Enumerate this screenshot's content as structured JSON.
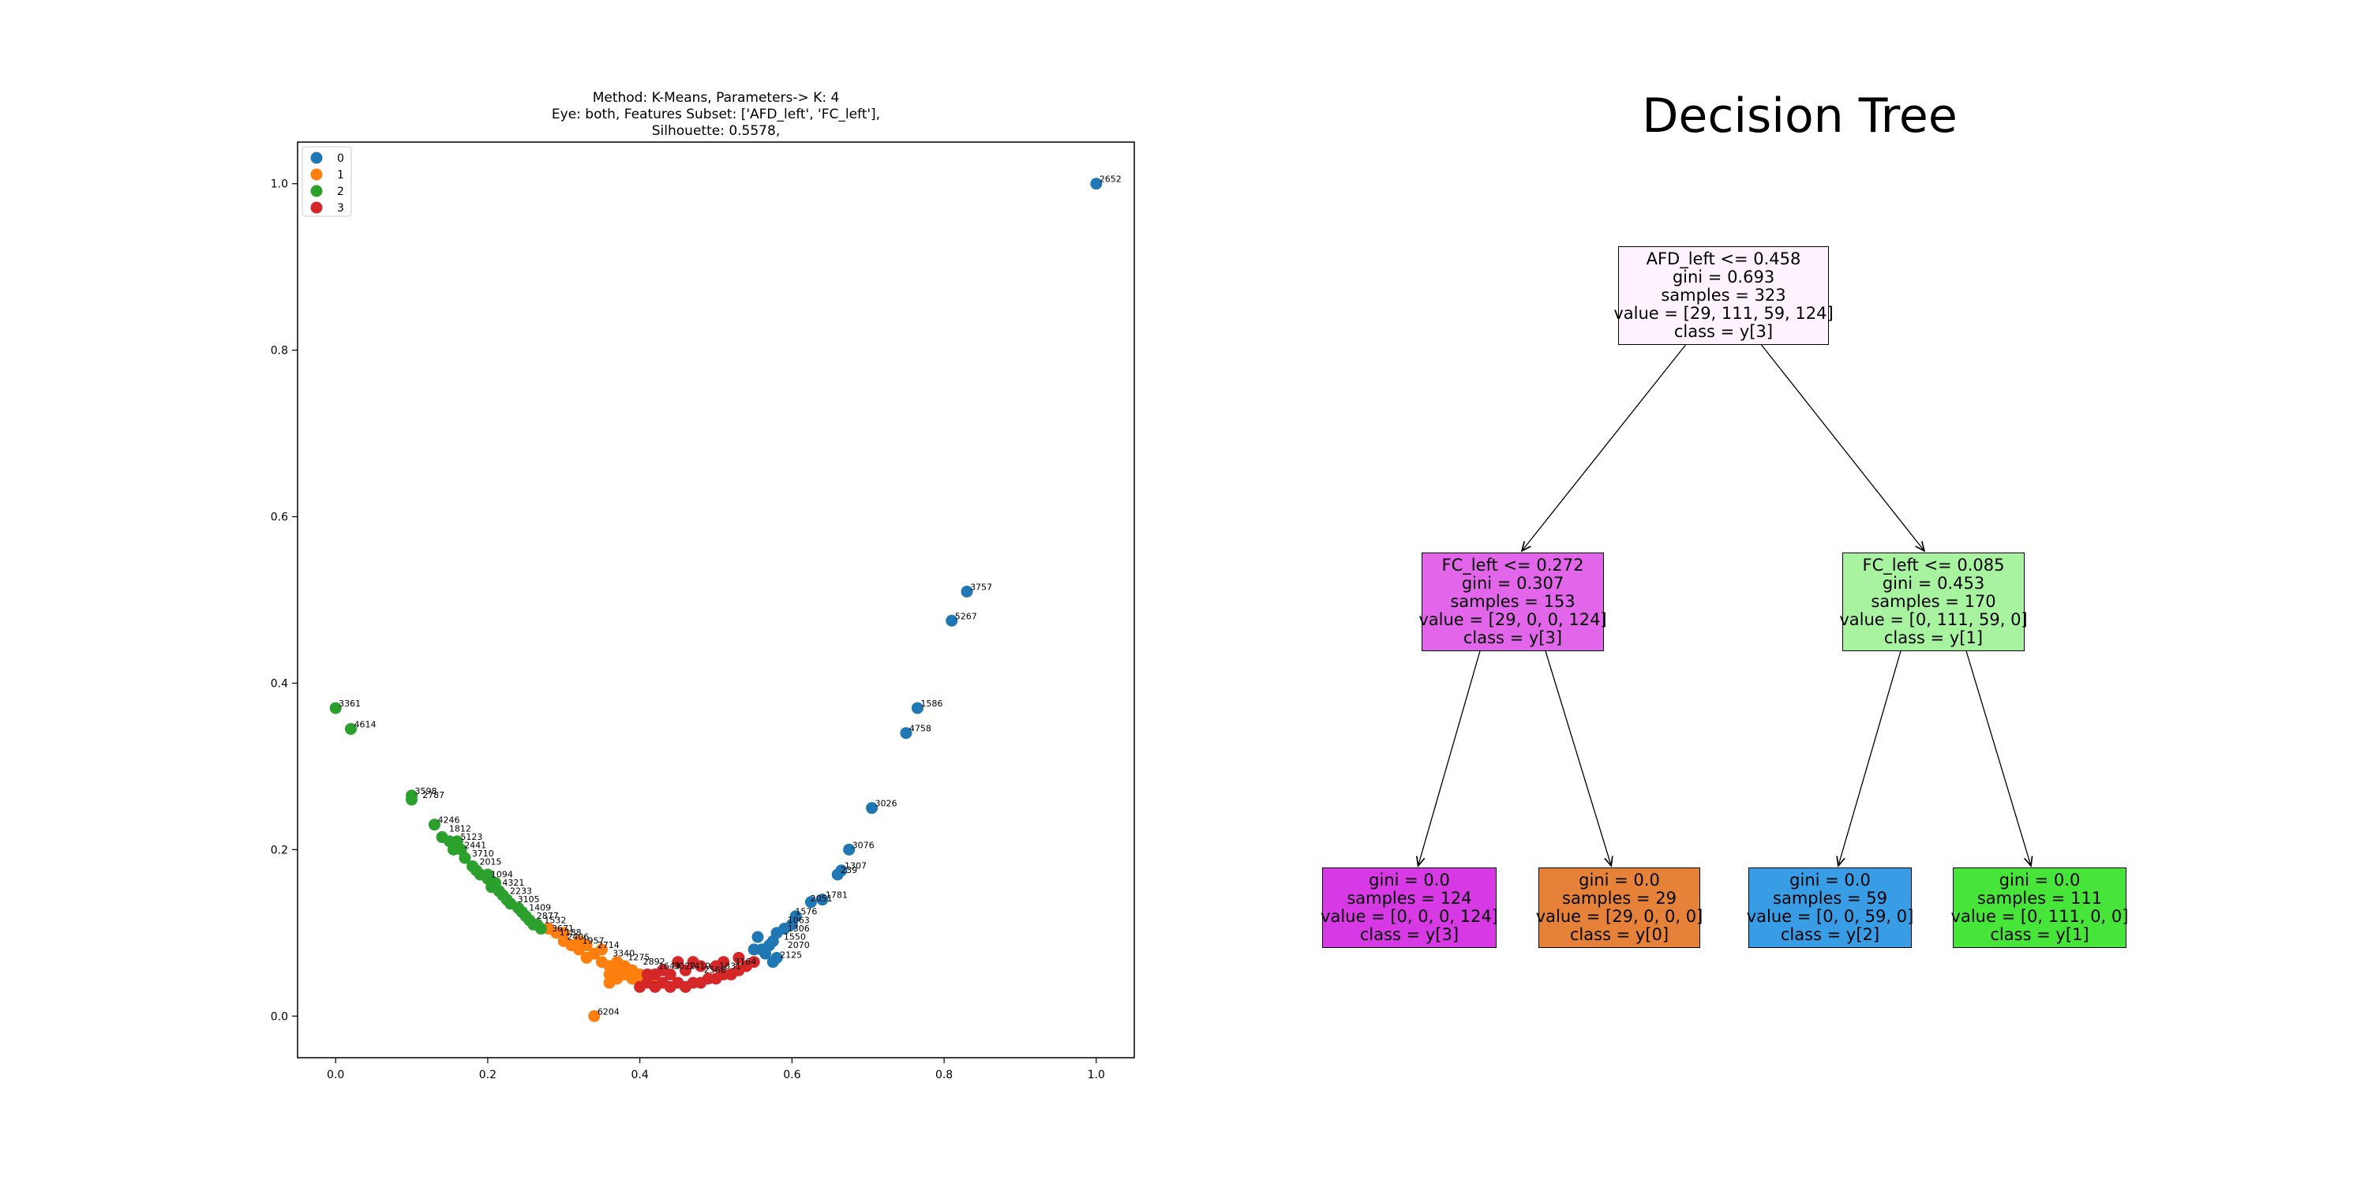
{
  "chart_data": [
    {
      "type": "scatter",
      "title": "Method: K-Means, Parameters-> K: 4\nEye: both, Features Subset: ['AFD_left', 'FC_left'],\nSilhouette: 0.5578,",
      "title_lines": [
        "Method: K-Means, Parameters-> K: 4",
        "Eye: both, Features Subset: ['AFD_left', 'FC_left'],",
        "Silhouette: 0.5578,"
      ],
      "xlabel": "",
      "ylabel": "",
      "xlim": [
        -0.05,
        1.05
      ],
      "ylim": [
        -0.05,
        1.05
      ],
      "x_ticks": [
        "0.0",
        "0.2",
        "0.4",
        "0.6",
        "0.8",
        "1.0"
      ],
      "y_ticks": [
        "0.0",
        "0.2",
        "0.4",
        "0.6",
        "0.8",
        "1.0"
      ],
      "grid": false,
      "legend_position": "top-left",
      "series": [
        {
          "name": "0",
          "color": "#1f77b4",
          "points": [
            [
              1.0,
              1.0
            ],
            [
              0.83,
              0.51
            ],
            [
              0.81,
              0.475
            ],
            [
              0.765,
              0.37
            ],
            [
              0.75,
              0.34
            ],
            [
              0.705,
              0.25
            ],
            [
              0.675,
              0.2
            ],
            [
              0.665,
              0.175
            ],
            [
              0.66,
              0.17
            ],
            [
              0.64,
              0.14
            ],
            [
              0.625,
              0.137
            ],
            [
              0.605,
              0.12
            ],
            [
              0.6,
              0.11
            ],
            [
              0.59,
              0.105
            ],
            [
              0.58,
              0.1
            ],
            [
              0.575,
              0.09
            ],
            [
              0.57,
              0.085
            ],
            [
              0.565,
              0.075
            ],
            [
              0.56,
              0.08
            ],
            [
              0.58,
              0.07
            ],
            [
              0.575,
              0.065
            ],
            [
              0.555,
              0.095
            ],
            [
              0.55,
              0.08
            ]
          ],
          "labels": [
            [
              1.0,
              1.0,
              "2652"
            ],
            [
              0.83,
              0.51,
              "3757"
            ],
            [
              0.81,
              0.475,
              "5267"
            ],
            [
              0.765,
              0.37,
              "1586"
            ],
            [
              0.75,
              0.34,
              "4758"
            ],
            [
              0.705,
              0.25,
              "3026"
            ],
            [
              0.675,
              0.2,
              "3076"
            ],
            [
              0.665,
              0.175,
              "1307"
            ],
            [
              0.66,
              0.17,
              "239"
            ],
            [
              0.64,
              0.14,
              "1781"
            ],
            [
              0.62,
              0.136,
              "2051"
            ],
            [
              0.6,
              0.12,
              "1576"
            ],
            [
              0.59,
              0.11,
              "1063"
            ],
            [
              0.59,
              0.1,
              "1306"
            ],
            [
              0.585,
              0.09,
              "1550"
            ],
            [
              0.59,
              0.08,
              "2070"
            ],
            [
              0.58,
              0.068,
              "2125"
            ]
          ]
        },
        {
          "name": "1",
          "color": "#ff7f0e",
          "points": [
            [
              0.34,
              0.0
            ],
            [
              0.36,
              0.06
            ],
            [
              0.37,
              0.055
            ],
            [
              0.38,
              0.05
            ],
            [
              0.37,
              0.045
            ],
            [
              0.36,
              0.04
            ],
            [
              0.39,
              0.045
            ],
            [
              0.35,
              0.065
            ],
            [
              0.33,
              0.07
            ],
            [
              0.32,
              0.08
            ],
            [
              0.31,
              0.085
            ],
            [
              0.3,
              0.09
            ],
            [
              0.3,
              0.1
            ],
            [
              0.29,
              0.1
            ],
            [
              0.28,
              0.105
            ],
            [
              0.34,
              0.075
            ],
            [
              0.38,
              0.06
            ],
            [
              0.4,
              0.05
            ],
            [
              0.41,
              0.045
            ],
            [
              0.42,
              0.04
            ],
            [
              0.36,
              0.05
            ],
            [
              0.35,
              0.08
            ],
            [
              0.33,
              0.085
            ],
            [
              0.32,
              0.09
            ],
            [
              0.39,
              0.055
            ],
            [
              0.37,
              0.065
            ],
            [
              0.4,
              0.04
            ]
          ],
          "labels": [
            [
              0.34,
              0.0,
              "6204"
            ]
          ]
        },
        {
          "name": "2",
          "color": "#2ca02c",
          "points": [
            [
              0.0,
              0.37
            ],
            [
              0.02,
              0.345
            ],
            [
              0.1,
              0.265
            ],
            [
              0.1,
              0.26
            ],
            [
              0.13,
              0.23
            ],
            [
              0.14,
              0.215
            ],
            [
              0.15,
              0.21
            ],
            [
              0.155,
              0.2
            ],
            [
              0.165,
              0.2
            ],
            [
              0.17,
              0.19
            ],
            [
              0.18,
              0.18
            ],
            [
              0.185,
              0.175
            ],
            [
              0.19,
              0.17
            ],
            [
              0.2,
              0.165
            ],
            [
              0.205,
              0.155
            ],
            [
              0.21,
              0.155
            ],
            [
              0.215,
              0.15
            ],
            [
              0.22,
              0.145
            ],
            [
              0.225,
              0.14
            ],
            [
              0.23,
              0.135
            ],
            [
              0.24,
              0.13
            ],
            [
              0.245,
              0.125
            ],
            [
              0.25,
              0.12
            ],
            [
              0.255,
              0.115
            ],
            [
              0.26,
              0.11
            ],
            [
              0.265,
              0.11
            ],
            [
              0.27,
              0.105
            ],
            [
              0.21,
              0.16
            ],
            [
              0.2,
              0.17
            ],
            [
              0.16,
              0.21
            ]
          ],
          "labels": [
            [
              0.0,
              0.37,
              "3361"
            ],
            [
              0.02,
              0.345,
              "4614"
            ],
            [
              0.1,
              0.265,
              "3598"
            ],
            [
              0.11,
              0.26,
              "2787"
            ],
            [
              0.13,
              0.23,
              "4246"
            ],
            [
              0.145,
              0.22,
              "1812"
            ],
            [
              0.16,
              0.21,
              "5123"
            ],
            [
              0.165,
              0.2,
              "2441"
            ],
            [
              0.175,
              0.19,
              "3710"
            ],
            [
              0.185,
              0.18,
              "2015"
            ],
            [
              0.2,
              0.165,
              "1094"
            ],
            [
              0.215,
              0.155,
              "4321"
            ],
            [
              0.225,
              0.145,
              "2233"
            ],
            [
              0.235,
              0.135,
              "3105"
            ],
            [
              0.25,
              0.125,
              "1409"
            ],
            [
              0.26,
              0.115,
              "2877"
            ],
            [
              0.27,
              0.11,
              "1532"
            ],
            [
              0.28,
              0.1,
              "3671"
            ],
            [
              0.29,
              0.095,
              "1188"
            ],
            [
              0.3,
              0.09,
              "2406"
            ],
            [
              0.32,
              0.085,
              "1957"
            ],
            [
              0.34,
              0.08,
              "2714"
            ],
            [
              0.36,
              0.07,
              "3340"
            ],
            [
              0.38,
              0.065,
              "1275"
            ],
            [
              0.4,
              0.06,
              "2892"
            ],
            [
              0.42,
              0.055,
              "1643"
            ],
            [
              0.44,
              0.055,
              "3022"
            ],
            [
              0.46,
              0.055,
              "1419"
            ],
            [
              0.48,
              0.05,
              "2568"
            ],
            [
              0.5,
              0.055,
              "1831"
            ],
            [
              0.52,
              0.06,
              "3164"
            ]
          ]
        },
        {
          "name": "3",
          "color": "#d62728",
          "points": [
            [
              0.4,
              0.035
            ],
            [
              0.41,
              0.04
            ],
            [
              0.42,
              0.035
            ],
            [
              0.43,
              0.04
            ],
            [
              0.44,
              0.035
            ],
            [
              0.45,
              0.04
            ],
            [
              0.46,
              0.035
            ],
            [
              0.47,
              0.04
            ],
            [
              0.48,
              0.04
            ],
            [
              0.49,
              0.045
            ],
            [
              0.5,
              0.045
            ],
            [
              0.51,
              0.05
            ],
            [
              0.52,
              0.05
            ],
            [
              0.53,
              0.055
            ],
            [
              0.54,
              0.06
            ],
            [
              0.5,
              0.06
            ],
            [
              0.48,
              0.06
            ],
            [
              0.46,
              0.055
            ],
            [
              0.44,
              0.05
            ],
            [
              0.42,
              0.05
            ],
            [
              0.45,
              0.065
            ],
            [
              0.47,
              0.065
            ],
            [
              0.51,
              0.065
            ],
            [
              0.53,
              0.07
            ],
            [
              0.55,
              0.065
            ],
            [
              0.43,
              0.055
            ],
            [
              0.41,
              0.05
            ]
          ],
          "labels": []
        }
      ]
    },
    {
      "type": "table",
      "title": "Decision Tree",
      "nodes": [
        {
          "id": "root",
          "lines": [
            "AFD_left <= 0.458",
            "gini = 0.693",
            "samples = 323",
            "value = [29, 111, 59, 124]",
            "class = y[3]"
          ],
          "fill": "#fdf2fd"
        },
        {
          "id": "left",
          "lines": [
            "FC_left <= 0.272",
            "gini = 0.307",
            "samples = 153",
            "value = [29, 0, 0, 124]",
            "class = y[3]"
          ],
          "fill": "#e266ea"
        },
        {
          "id": "right",
          "lines": [
            "FC_left <= 0.085",
            "gini = 0.453",
            "samples = 170",
            "value = [0, 111, 59, 0]",
            "class = y[1]"
          ],
          "fill": "#a7f3a0"
        },
        {
          "id": "leaf-1",
          "lines": [
            "gini = 0.0",
            "samples = 124",
            "value = [0, 0, 0, 124]",
            "class = y[3]"
          ],
          "fill": "#d739e5"
        },
        {
          "id": "leaf-2",
          "lines": [
            "gini = 0.0",
            "samples = 29",
            "value = [29, 0, 0, 0]",
            "class = y[0]"
          ],
          "fill": "#e58139"
        },
        {
          "id": "leaf-3",
          "lines": [
            "gini = 0.0",
            "samples = 59",
            "value = [0, 0, 59, 0]",
            "class = y[2]"
          ],
          "fill": "#399de5"
        },
        {
          "id": "leaf-4",
          "lines": [
            "gini = 0.0",
            "samples = 111",
            "value = [0, 111, 0, 0]",
            "class = y[1]"
          ],
          "fill": "#47e539"
        }
      ],
      "edges": [
        [
          "root",
          "left"
        ],
        [
          "root",
          "right"
        ],
        [
          "left",
          "leaf-1"
        ],
        [
          "left",
          "leaf-2"
        ],
        [
          "right",
          "leaf-3"
        ],
        [
          "right",
          "leaf-4"
        ]
      ]
    }
  ]
}
